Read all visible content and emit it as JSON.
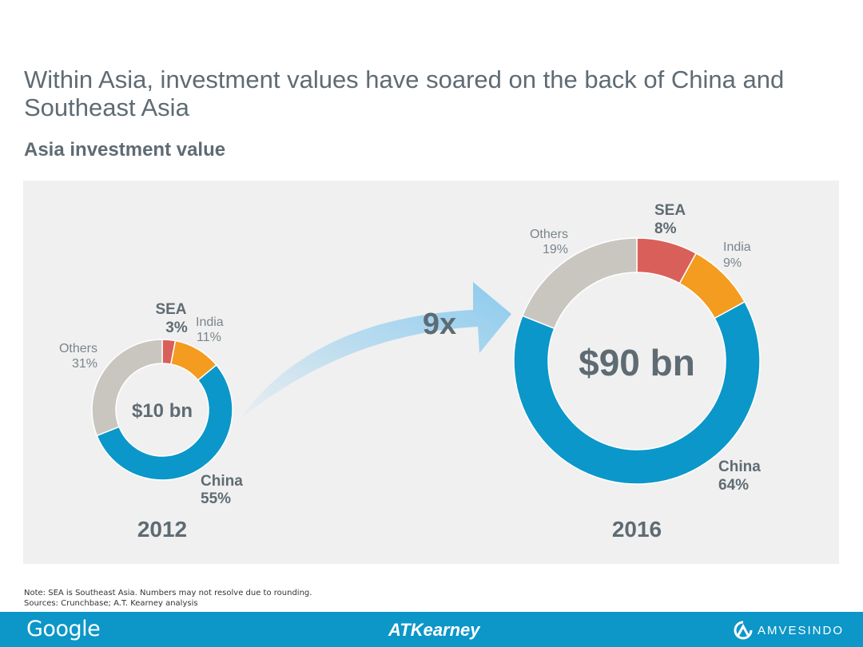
{
  "title": "Within Asia, investment values have soared on the back of China and Southeast Asia",
  "subtitle": "Asia investment value",
  "multiplier": "9x",
  "note": "Note: SEA is Southeast Asia. Numbers may not resolve due to rounding.",
  "sources": "Sources: Crunchbase; A.T. Kearney analysis",
  "footer": {
    "google": "Google",
    "kearney": "ATKearney",
    "amvesindo": "AMVESINDO",
    "amvesindo_logo": "amvesindo-logo-icon"
  },
  "colors": {
    "SEA": "#d9605a",
    "India": "#f39c20",
    "China": "#0b97c9",
    "Others": "#c9c6c0",
    "text": "#5f6b73",
    "arrow": "#8ccbee"
  },
  "chart_data": [
    {
      "type": "pie",
      "style": "donut",
      "year": "2012",
      "center_label": "$10 bn",
      "total": 10,
      "unit": "bn USD",
      "slices": [
        {
          "name": "SEA",
          "value": 3,
          "label": "3%"
        },
        {
          "name": "India",
          "value": 11,
          "label": "11%"
        },
        {
          "name": "China",
          "value": 55,
          "label": "55%"
        },
        {
          "name": "Others",
          "value": 31,
          "label": "31%"
        }
      ]
    },
    {
      "type": "pie",
      "style": "donut",
      "year": "2016",
      "center_label": "$90 bn",
      "total": 90,
      "unit": "bn USD",
      "slices": [
        {
          "name": "SEA",
          "value": 8,
          "label": "8%"
        },
        {
          "name": "India",
          "value": 9,
          "label": "9%"
        },
        {
          "name": "China",
          "value": 64,
          "label": "64%"
        },
        {
          "name": "Others",
          "value": 19,
          "label": "19%"
        }
      ]
    }
  ]
}
